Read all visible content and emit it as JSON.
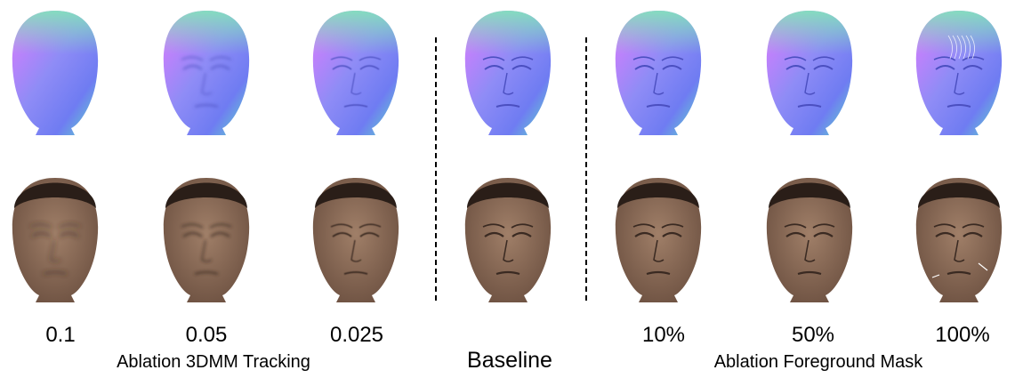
{
  "figure": {
    "columns": [
      {
        "label": "0.1"
      },
      {
        "label": "0.05"
      },
      {
        "label": "0.025"
      },
      {
        "label": ""
      },
      {
        "label": "10%"
      },
      {
        "label": "50%"
      },
      {
        "label": "100%"
      }
    ],
    "groups": {
      "tracking": "Ablation 3DMM Tracking",
      "baseline": "Baseline",
      "mask": "Ablation Foreground Mask"
    },
    "rows": [
      "normal-map-row",
      "rgb-render-row"
    ],
    "colors": {
      "skin": "#8a6a55",
      "hair": "#2a1e18",
      "normal_blue": "#6f7cf2",
      "normal_magenta": "#e07aff",
      "normal_green": "#5fe0c8"
    }
  }
}
